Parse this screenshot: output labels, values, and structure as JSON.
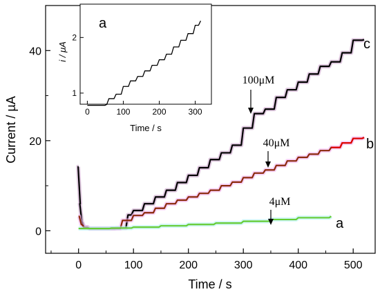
{
  "chart_data": [
    {
      "type": "line",
      "xlabel": "Time / s",
      "ylabel": "Current / µA",
      "xlim": [
        -60,
        540
      ],
      "ylim": [
        -5,
        50
      ],
      "xticks": [
        0,
        100,
        200,
        300,
        400,
        500
      ],
      "yticks": [
        0,
        20,
        40
      ],
      "series": [
        {
          "name": "c",
          "color": "#000000",
          "halo": "#c9a3c9",
          "x": [
            0,
            3,
            6,
            10,
            20,
            40,
            70,
            90,
            100,
            120,
            140,
            160,
            180,
            200,
            220,
            240,
            260,
            280,
            300,
            320,
            340,
            360,
            380,
            400,
            420,
            440,
            460,
            480,
            500,
            520
          ],
          "y": [
            14.2,
            6.0,
            2.0,
            0.8,
            0.5,
            0.5,
            0.6,
            3.5,
            4.5,
            6.0,
            7.5,
            9.0,
            10.7,
            12.3,
            14.0,
            15.8,
            17.3,
            19.0,
            22.8,
            26.0,
            27.0,
            29.6,
            31.3,
            33.0,
            34.8,
            36.5,
            37.5,
            39.5,
            42.3,
            42.4
          ]
        },
        {
          "name": "b",
          "color": "#8b2a0c",
          "end_color": "#e00000",
          "halo": "#f2b3f2",
          "x": [
            0,
            5,
            10,
            20,
            40,
            70,
            80,
            100,
            120,
            140,
            160,
            180,
            200,
            220,
            240,
            260,
            280,
            300,
            320,
            340,
            360,
            380,
            400,
            420,
            440,
            460,
            480,
            500,
            520
          ],
          "y": [
            3.2,
            1.4,
            0.7,
            0.5,
            0.5,
            0.5,
            2.3,
            3.4,
            4.0,
            5.0,
            6.0,
            6.8,
            7.5,
            8.3,
            9.0,
            10.0,
            10.8,
            11.8,
            12.8,
            13.5,
            14.5,
            15.5,
            16.3,
            17.0,
            17.8,
            18.5,
            19.5,
            20.5,
            20.7
          ]
        },
        {
          "name": "a",
          "color": "#66cc33",
          "halo": "#b3f2f2",
          "x": [
            0,
            20,
            60,
            100,
            150,
            200,
            250,
            300,
            350,
            400,
            460
          ],
          "y": [
            0.5,
            0.5,
            0.6,
            0.8,
            1.1,
            1.4,
            1.7,
            2.1,
            2.5,
            2.9,
            3.2
          ]
        }
      ],
      "curve_labels": [
        "a",
        "b",
        "c"
      ],
      "annotations": [
        {
          "text": "100μM",
          "x": 325,
          "y": 26
        },
        {
          "text": "40μM",
          "x": 352,
          "y": 14.8
        },
        {
          "text": "4μM",
          "x": 358,
          "y": 2.7
        }
      ]
    },
    {
      "type": "line",
      "title": "a",
      "xlabel": "Time / s",
      "ylabel": "i / μA",
      "xlim": [
        -20,
        345
      ],
      "ylim": [
        0.8,
        2.6
      ],
      "xticks": [
        0,
        100,
        200,
        300
      ],
      "yticks": [
        1,
        2
      ],
      "series": [
        {
          "name": "inset",
          "color": "#000000",
          "x": [
            0,
            30,
            55,
            60,
            80,
            100,
            120,
            140,
            160,
            180,
            200,
            220,
            240,
            260,
            280,
            300,
            315
          ],
          "y": [
            0.78,
            0.78,
            0.8,
            0.9,
            0.98,
            1.12,
            1.22,
            1.3,
            1.4,
            1.5,
            1.6,
            1.7,
            1.83,
            1.95,
            2.07,
            2.22,
            2.3
          ]
        }
      ]
    }
  ]
}
